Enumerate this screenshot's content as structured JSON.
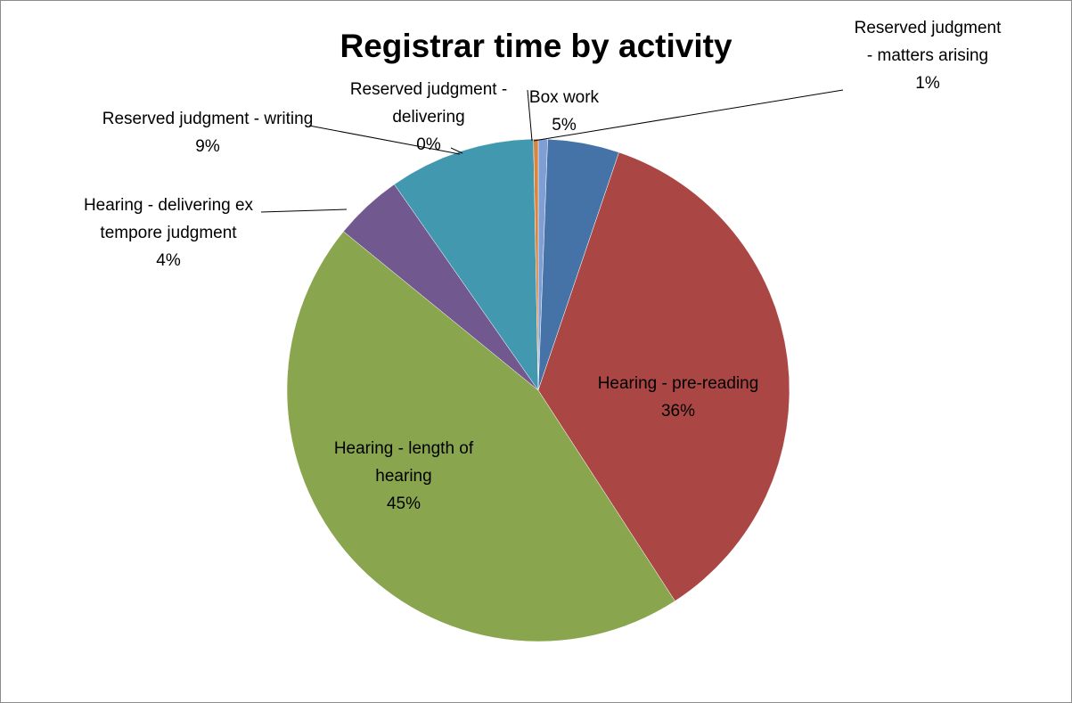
{
  "chart_data": {
    "type": "pie",
    "title": "Registrar time by activity",
    "categories": [
      "Reserved judgment - matters arising",
      "Box work",
      "Hearing - pre-reading",
      "Hearing - length of hearing",
      "Hearing - delivering ex tempore judgment",
      "Reserved judgment - writing",
      "Reserved judgment - delivering"
    ],
    "values": [
      0.6,
      4.6,
      35.6,
      45,
      4.4,
      9.4,
      0.3
    ],
    "value_labels": [
      "1%",
      "5%",
      "36%",
      "45%",
      "4%",
      "9%",
      "0%"
    ],
    "colors": [
      "#7f9fd4",
      "#4572a7",
      "#aa4643",
      "#89a54e",
      "#71588f",
      "#4198af",
      "#db843d"
    ]
  }
}
